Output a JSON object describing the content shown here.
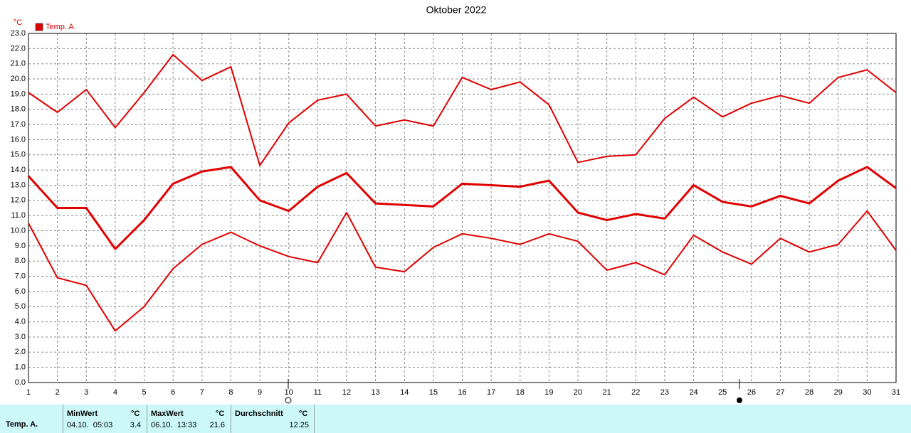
{
  "chart_data": {
    "type": "line",
    "title": "Oktober 2022",
    "y_unit": "°C",
    "categories": [
      "1",
      "2",
      "3",
      "4",
      "5",
      "6",
      "7",
      "8",
      "9",
      "10",
      "11",
      "12",
      "13",
      "14",
      "15",
      "16",
      "17",
      "18",
      "19",
      "20",
      "21",
      "22",
      "23",
      "24",
      "25",
      "26",
      "27",
      "28",
      "29",
      "30",
      "31"
    ],
    "series": [
      {
        "color": "#e00000",
        "values": [
          19.1,
          17.8,
          19.3,
          16.8,
          19.1,
          21.6,
          19.9,
          20.8,
          14.3,
          17.1,
          18.6,
          19.0,
          16.9,
          17.3,
          16.9,
          20.1,
          19.3,
          19.8,
          18.3,
          14.5,
          14.9,
          15.0,
          17.4,
          18.8,
          17.5,
          18.4,
          18.9,
          18.4,
          20.1,
          20.6,
          19.1
        ]
      },
      {
        "name": "Temp. A.",
        "color": "#e00000",
        "values": [
          13.6,
          11.5,
          11.5,
          8.8,
          10.7,
          13.1,
          13.9,
          14.2,
          12.0,
          11.3,
          12.9,
          13.8,
          11.8,
          11.7,
          11.6,
          13.1,
          13.0,
          12.9,
          13.3,
          11.2,
          10.7,
          11.1,
          10.8,
          13.0,
          11.9,
          11.6,
          12.3,
          11.8,
          13.3,
          14.2,
          12.8
        ]
      },
      {
        "color": "#e00000",
        "values": [
          10.5,
          6.9,
          6.4,
          3.4,
          5.0,
          7.5,
          9.1,
          9.9,
          9.0,
          8.3,
          7.9,
          11.2,
          7.6,
          7.3,
          8.9,
          9.8,
          9.5,
          9.1,
          9.8,
          9.3,
          7.4,
          7.9,
          7.1,
          9.7,
          8.6,
          7.8,
          9.5,
          8.6,
          9.1,
          11.3,
          8.7
        ]
      }
    ],
    "ylim": [
      0,
      23
    ],
    "yticks": [
      {
        "value": 0,
        "label": "0.0"
      },
      {
        "value": 1,
        "label": "1.0"
      },
      {
        "value": 2,
        "label": "2.0"
      },
      {
        "value": 3,
        "label": "3.0"
      },
      {
        "value": 4,
        "label": "4.0"
      },
      {
        "value": 5,
        "label": "5.0"
      },
      {
        "value": 6,
        "label": "6.0"
      },
      {
        "value": 7,
        "label": "7.0"
      },
      {
        "value": 8,
        "label": "8.0"
      },
      {
        "value": 9,
        "label": "9.0"
      },
      {
        "value": 10,
        "label": "10.0"
      },
      {
        "value": 11,
        "label": "11.0"
      },
      {
        "value": 12,
        "label": "12.0"
      },
      {
        "value": 13,
        "label": "13.0"
      },
      {
        "value": 14,
        "label": "14.0"
      },
      {
        "value": 15,
        "label": "15.0"
      },
      {
        "value": 16,
        "label": "16.0"
      },
      {
        "value": 17,
        "label": "17.0"
      },
      {
        "value": 18,
        "label": "18.0"
      },
      {
        "value": 19,
        "label": "19.0"
      },
      {
        "value": 20,
        "label": "20.0"
      },
      {
        "value": 21,
        "label": "21.0"
      },
      {
        "value": 22,
        "label": "22.0"
      },
      {
        "value": 23,
        "label": "23.0"
      }
    ],
    "grid": true
  },
  "stats": {
    "label": "Temp. A.",
    "min": {
      "title": "MinWert",
      "unit": "°C",
      "time": "04.10.  05:03",
      "value": 3.4
    },
    "max": {
      "title": "MaxWert",
      "unit": "°C",
      "time": "06.10.  13:33",
      "value": 21.6
    },
    "avg": {
      "title": "Durchschnitt",
      "unit": "°C",
      "value": 12.25
    }
  }
}
